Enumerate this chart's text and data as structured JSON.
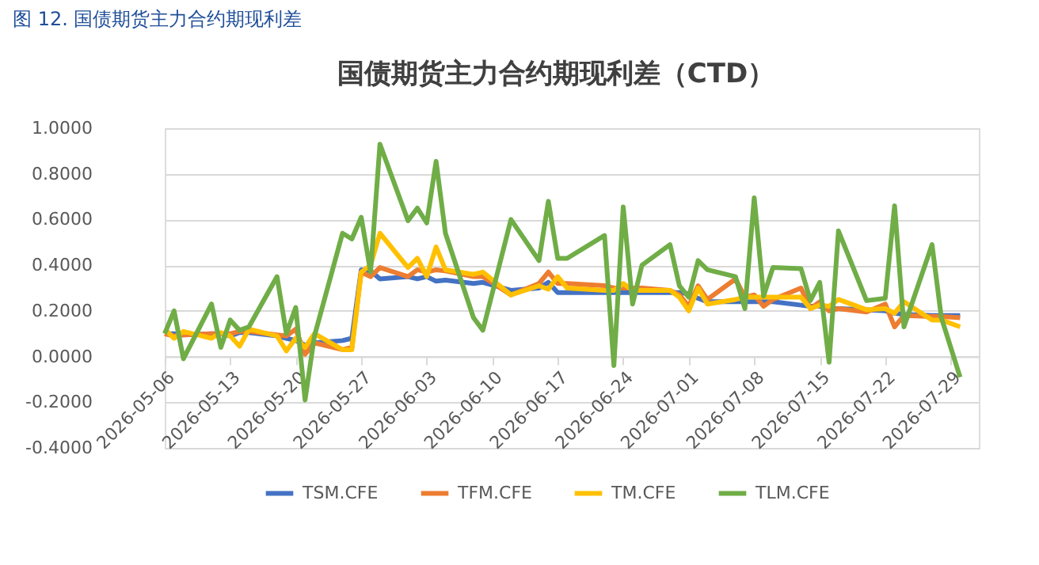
{
  "chart_data": {
    "type": "line",
    "title": "国债期货主力合约期现利差（CTD）",
    "annotations": [
      "图 12. 国债期货主力合约期现利差"
    ],
    "x": [
      "2026-05-06",
      "2026-05-07",
      "2026-05-08",
      "2026-05-11",
      "2026-05-12",
      "2026-05-13",
      "2026-05-14",
      "2026-05-15",
      "2026-05-18",
      "2026-05-19",
      "2026-05-20",
      "2026-05-21",
      "2026-05-22",
      "2026-05-25",
      "2026-05-26",
      "2026-05-27",
      "2026-05-28",
      "2026-05-29",
      "2026-06-01",
      "2026-06-02",
      "2026-06-03",
      "2026-06-04",
      "2026-06-05",
      "2026-06-08",
      "2026-06-09",
      "2026-06-12",
      "2026-06-15",
      "2026-06-16",
      "2026-06-17",
      "2026-06-18",
      "2026-06-22",
      "2026-06-23",
      "2026-06-24",
      "2026-06-25",
      "2026-06-26",
      "2026-06-29",
      "2026-06-30",
      "2026-07-01",
      "2026-07-02",
      "2026-07-03",
      "2026-07-06",
      "2026-07-07",
      "2026-07-08",
      "2026-07-09",
      "2026-07-10",
      "2026-07-13",
      "2026-07-14",
      "2026-07-15",
      "2026-07-16",
      "2026-07-17",
      "2026-07-20",
      "2026-07-22",
      "2026-07-23",
      "2026-07-24",
      "2026-07-27",
      "2026-07-28",
      "2026-07-30"
    ],
    "series": [
      {
        "name": "TSM.CFE",
        "color": "#4472c4",
        "values": [
          0.1,
          0.1,
          0.095,
          0.1,
          0.1,
          0.09,
          0.105,
          0.105,
          0.09,
          0.08,
          0.07,
          0.05,
          0.06,
          0.07,
          0.08,
          0.38,
          0.375,
          0.34,
          0.35,
          0.34,
          0.35,
          0.33,
          0.335,
          0.32,
          0.325,
          0.29,
          0.3,
          0.325,
          0.28,
          0.28,
          0.28,
          0.28,
          0.28,
          0.28,
          0.28,
          0.28,
          0.28,
          0.275,
          0.255,
          0.24,
          0.24,
          0.24,
          0.24,
          0.24,
          0.24,
          0.225,
          0.22,
          0.22,
          0.21,
          0.21,
          0.205,
          0.2,
          0.19,
          0.185,
          0.18,
          0.18,
          0.18
        ]
      },
      {
        "name": "TFM.CFE",
        "color": "#ed7d31",
        "values": [
          0.1,
          0.09,
          0.095,
          0.1,
          0.1,
          0.1,
          0.11,
          0.11,
          0.095,
          0.09,
          0.12,
          0.01,
          0.06,
          0.03,
          0.04,
          0.37,
          0.35,
          0.39,
          0.35,
          0.38,
          0.37,
          0.38,
          0.375,
          0.35,
          0.35,
          0.27,
          0.32,
          0.37,
          0.32,
          0.32,
          0.31,
          0.3,
          0.3,
          0.3,
          0.3,
          0.29,
          0.27,
          0.22,
          0.31,
          0.25,
          0.34,
          0.26,
          0.27,
          0.22,
          0.25,
          0.3,
          0.21,
          0.24,
          0.2,
          0.21,
          0.195,
          0.23,
          0.13,
          0.18,
          0.175,
          0.175,
          0.17
        ]
      },
      {
        "name": "TM.CFE",
        "color": "#ffc000",
        "values": [
          0.12,
          0.08,
          0.11,
          0.08,
          0.105,
          0.09,
          0.045,
          0.12,
          0.09,
          0.025,
          0.08,
          0.04,
          0.1,
          0.03,
          0.03,
          0.37,
          0.4,
          0.54,
          0.39,
          0.43,
          0.35,
          0.48,
          0.38,
          0.36,
          0.37,
          0.27,
          0.31,
          0.295,
          0.35,
          0.3,
          0.29,
          0.29,
          0.32,
          0.29,
          0.29,
          0.29,
          0.26,
          0.2,
          0.3,
          0.23,
          0.25,
          0.26,
          0.26,
          0.26,
          0.26,
          0.26,
          0.21,
          0.225,
          0.22,
          0.25,
          0.205,
          0.21,
          0.19,
          0.24,
          0.16,
          0.16,
          0.13
        ]
      },
      {
        "name": "TLM.CFE",
        "color": "#70ad47",
        "values": [
          0.1,
          0.2,
          -0.01,
          0.23,
          0.04,
          0.16,
          0.115,
          0.13,
          0.35,
          0.1,
          0.215,
          -0.19,
          0.09,
          0.54,
          0.515,
          0.61,
          0.37,
          0.93,
          0.595,
          0.65,
          0.585,
          0.855,
          0.54,
          0.17,
          0.115,
          0.6,
          0.42,
          0.68,
          0.43,
          0.43,
          0.53,
          -0.04,
          0.655,
          0.23,
          0.4,
          0.49,
          0.31,
          0.26,
          0.42,
          0.38,
          0.35,
          0.21,
          0.695,
          0.265,
          0.39,
          0.385,
          0.245,
          0.325,
          -0.025,
          0.55,
          0.245,
          0.255,
          0.66,
          0.13,
          0.49,
          0.17,
          -0.09
        ]
      }
    ],
    "xlim": [
      "2026-05-06",
      "2026-08-01"
    ],
    "xticks": [
      "2026-05-06",
      "2026-05-13",
      "2026-05-20",
      "2026-05-27",
      "2026-06-03",
      "2026-06-10",
      "2026-06-17",
      "2026-06-24",
      "2026-07-01",
      "2026-07-08",
      "2026-07-15",
      "2026-07-22",
      "2026-07-29"
    ],
    "ylim": [
      -0.4,
      1.0
    ],
    "yticks": [
      {
        "value": -0.4,
        "label": "-0.4000"
      },
      {
        "value": -0.2,
        "label": "-0.2000"
      },
      {
        "value": 0,
        "label": "0.0000"
      },
      {
        "value": 0.2,
        "label": "0.2000"
      },
      {
        "value": 0.4,
        "label": "0.4000"
      },
      {
        "value": 0.6,
        "label": "0.6000"
      },
      {
        "value": 0.8,
        "label": "0.8000"
      },
      {
        "value": 1.0,
        "label": "1.0000"
      }
    ],
    "grid": "y",
    "legend": "bottom",
    "marker": "none",
    "line_style": "solid"
  }
}
